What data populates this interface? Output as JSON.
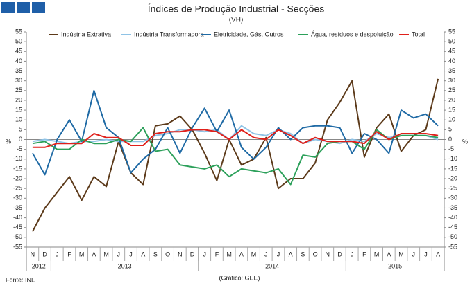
{
  "chart_data": {
    "type": "line",
    "title": "Índices de Produção Industrial - Secções",
    "subtitle": "(VH)",
    "y_label": "%",
    "y2_label": "%",
    "source": "Fonte: INE",
    "credit": "(Gráfico: GEE)",
    "categories": [
      "N",
      "D",
      "J",
      "F",
      "M",
      "A",
      "M",
      "J",
      "J",
      "A",
      "S",
      "O",
      "N",
      "D",
      "J",
      "F",
      "M",
      "A",
      "M",
      "J",
      "J",
      "A",
      "S",
      "O",
      "N",
      "D",
      "J",
      "F",
      "M",
      "A",
      "M",
      "J",
      "J",
      "A"
    ],
    "years": [
      {
        "label": "2012",
        "months": 2
      },
      {
        "label": "2013",
        "months": 12
      },
      {
        "label": "2014",
        "months": 12
      },
      {
        "label": "2015",
        "months": 8
      }
    ],
    "series": [
      {
        "name": "Indústria Extrativa",
        "color": "#5c3a1a",
        "values": [
          -47,
          -35,
          -27,
          -19,
          -31,
          -19,
          -24,
          -1,
          -17,
          -23,
          7,
          8,
          12,
          5,
          -7,
          -21,
          0,
          -13,
          -10,
          1,
          -25,
          -20,
          -20,
          -12,
          10,
          19,
          30,
          -9,
          6,
          13,
          -6,
          2,
          5,
          31
        ]
      },
      {
        "name": "Indústria Transformadora",
        "color": "#8fc3e6",
        "values": [
          -1,
          0,
          -1,
          -2,
          -1,
          -1,
          0,
          -1,
          -1,
          -1,
          2,
          3,
          5,
          5,
          4,
          5,
          0,
          7,
          3,
          2,
          5,
          3,
          -2,
          0,
          -1,
          -2,
          0,
          -1,
          3,
          1,
          2,
          2,
          2,
          0
        ]
      },
      {
        "name": "Eletricidade, Gás, Outros",
        "color": "#1f6aa5",
        "values": [
          -7,
          -18,
          0,
          10,
          -1,
          25,
          6,
          1,
          -17,
          -10,
          -5,
          6,
          -7,
          6,
          16,
          4,
          15,
          -4,
          -10,
          -4,
          6,
          0,
          6,
          7,
          7,
          6,
          -7,
          3,
          0,
          -7,
          15,
          11,
          13,
          7
        ]
      },
      {
        "name": "Água, resíduos e despoluição",
        "color": "#2ca05a",
        "values": [
          -2,
          -1,
          -5,
          -5,
          0,
          -2,
          -2,
          0,
          -1,
          6,
          -6,
          -5,
          -13,
          -14,
          -15,
          -13,
          -19,
          -15,
          -16,
          -17,
          -15,
          -23,
          -8,
          -9,
          -2,
          -1,
          -1,
          -5,
          5,
          0,
          2,
          2,
          2,
          1
        ]
      },
      {
        "name": "Total",
        "color": "#e0201b",
        "values": [
          -4,
          -4,
          -2,
          -2,
          -2,
          3,
          1,
          1,
          -3,
          -3,
          3,
          4,
          4,
          5,
          5,
          4,
          0,
          5,
          1,
          0,
          5,
          2,
          -2,
          1,
          -1,
          -1,
          -1,
          -2,
          4,
          0,
          3,
          3,
          3,
          2
        ]
      }
    ],
    "ylim": [
      -55,
      55
    ],
    "yticks": [
      -55,
      -50,
      -45,
      -40,
      -35,
      -30,
      -25,
      -20,
      -15,
      -10,
      -5,
      0,
      5,
      10,
      15,
      20,
      25,
      30,
      35,
      40,
      45,
      50,
      55
    ],
    "y2lim": [
      -55,
      55
    ],
    "y2ticks": [
      -55,
      -50,
      -45,
      -40,
      -35,
      -30,
      -25,
      -20,
      -15,
      -10,
      -5,
      0,
      5,
      10,
      15,
      20,
      25,
      30,
      35,
      40,
      45,
      50,
      55
    ],
    "grid": false,
    "legend": "top"
  }
}
